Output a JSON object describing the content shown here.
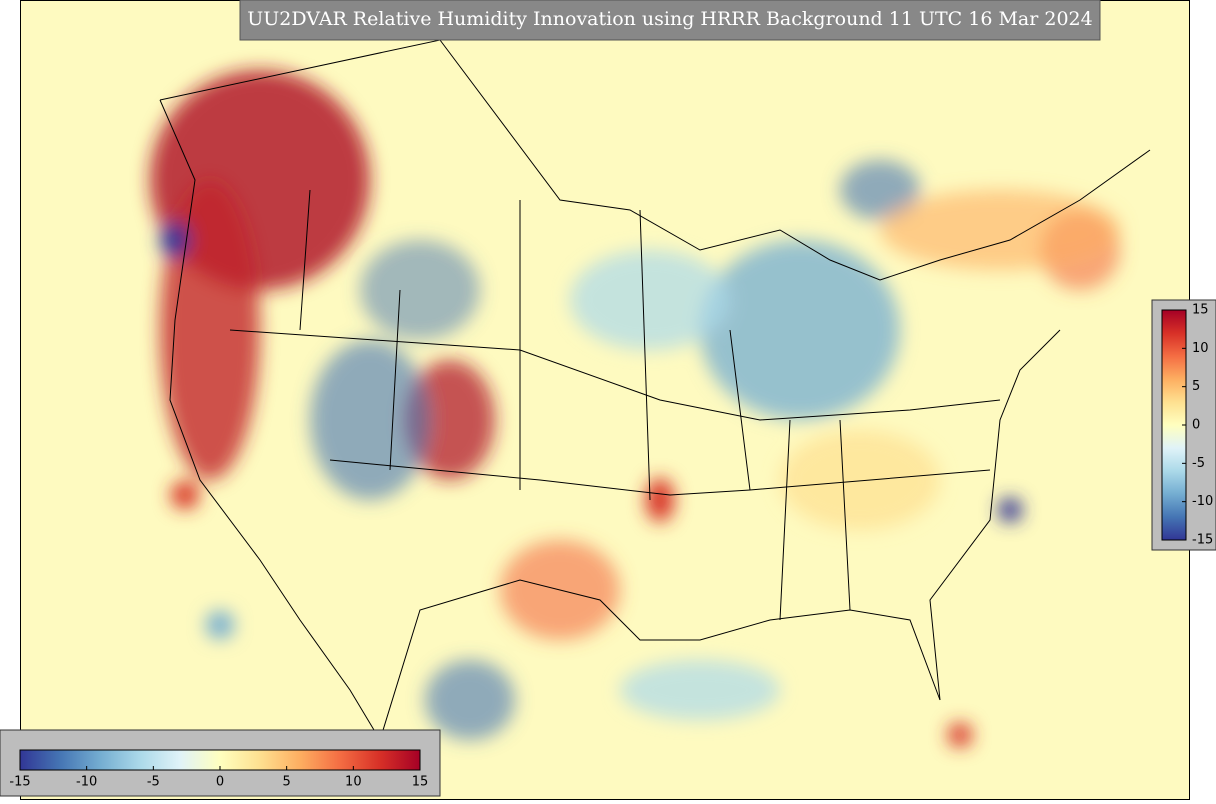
{
  "title": "UU2DVAR Relative Humidity Innovation using HRRR Background 11 UTC 16 Mar 2024",
  "colormap": [
    "#313695",
    "#4575b4",
    "#74add1",
    "#abd9e9",
    "#e0f3f8",
    "#ffffbf",
    "#fee090",
    "#fdae61",
    "#f46d43",
    "#d73027",
    "#a50026"
  ],
  "colorbars": [
    {
      "orientation": "vertical",
      "lim": [
        -15,
        15
      ],
      "ticks": [
        -15,
        -10,
        -5,
        0,
        5,
        10,
        15
      ]
    },
    {
      "orientation": "horizontal",
      "lim": [
        -15,
        15
      ],
      "ticks": [
        -15,
        -10,
        -5,
        0,
        5,
        10,
        15
      ]
    }
  ]
}
